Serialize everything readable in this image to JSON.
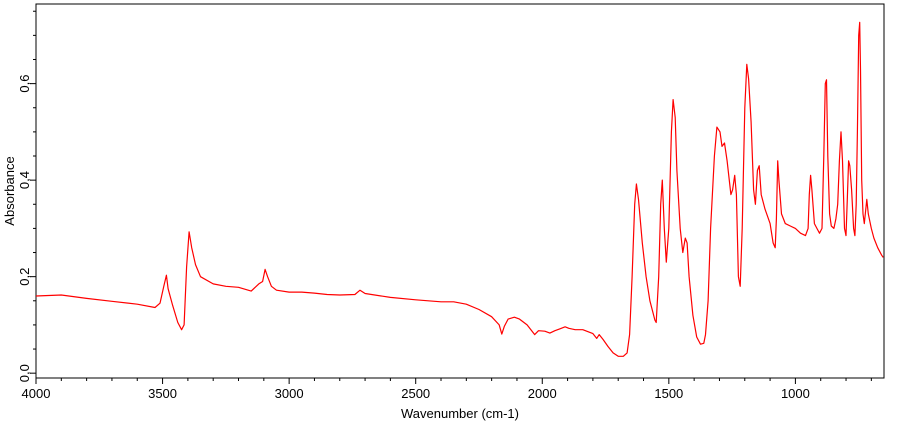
{
  "chart_data": {
    "type": "line",
    "title": "",
    "xlabel": "Wavenumber (cm-1)",
    "ylabel": "Absorbance",
    "xlim": [
      4000,
      650
    ],
    "ylim": [
      -0.01,
      0.765
    ],
    "x_reversed": true,
    "grid": false,
    "legend": "none",
    "line_color": "#ff0000",
    "x_major_ticks": [
      4000,
      3500,
      3000,
      2500,
      2000,
      1500,
      1000
    ],
    "x_tick_labels": [
      "4000",
      "3500",
      "3000",
      "2500",
      "2000",
      "1500",
      "1000"
    ],
    "y_major_ticks": [
      0.0,
      0.2,
      0.4,
      0.6
    ],
    "y_tick_labels": [
      "0,0",
      "0,2",
      "0,4",
      "0,6"
    ],
    "series": [
      {
        "points": [
          [
            4000,
            0.16
          ],
          [
            3900,
            0.162
          ],
          [
            3800,
            0.155
          ],
          [
            3700,
            0.149
          ],
          [
            3600,
            0.143
          ],
          [
            3530,
            0.136
          ],
          [
            3510,
            0.145
          ],
          [
            3495,
            0.18
          ],
          [
            3485,
            0.203
          ],
          [
            3478,
            0.175
          ],
          [
            3460,
            0.14
          ],
          [
            3440,
            0.105
          ],
          [
            3425,
            0.09
          ],
          [
            3415,
            0.1
          ],
          [
            3405,
            0.22
          ],
          [
            3395,
            0.293
          ],
          [
            3385,
            0.26
          ],
          [
            3370,
            0.225
          ],
          [
            3350,
            0.2
          ],
          [
            3300,
            0.185
          ],
          [
            3250,
            0.18
          ],
          [
            3200,
            0.178
          ],
          [
            3150,
            0.17
          ],
          [
            3120,
            0.185
          ],
          [
            3105,
            0.19
          ],
          [
            3095,
            0.215
          ],
          [
            3085,
            0.2
          ],
          [
            3070,
            0.18
          ],
          [
            3050,
            0.172
          ],
          [
            3000,
            0.168
          ],
          [
            2950,
            0.168
          ],
          [
            2900,
            0.166
          ],
          [
            2850,
            0.163
          ],
          [
            2800,
            0.162
          ],
          [
            2740,
            0.163
          ],
          [
            2720,
            0.172
          ],
          [
            2700,
            0.165
          ],
          [
            2600,
            0.157
          ],
          [
            2500,
            0.152
          ],
          [
            2400,
            0.148
          ],
          [
            2350,
            0.148
          ],
          [
            2300,
            0.143
          ],
          [
            2250,
            0.132
          ],
          [
            2200,
            0.117
          ],
          [
            2170,
            0.1
          ],
          [
            2160,
            0.081
          ],
          [
            2150,
            0.097
          ],
          [
            2135,
            0.112
          ],
          [
            2110,
            0.116
          ],
          [
            2090,
            0.112
          ],
          [
            2060,
            0.1
          ],
          [
            2045,
            0.09
          ],
          [
            2030,
            0.08
          ],
          [
            2015,
            0.088
          ],
          [
            1990,
            0.087
          ],
          [
            1970,
            0.083
          ],
          [
            1950,
            0.088
          ],
          [
            1930,
            0.092
          ],
          [
            1910,
            0.096
          ],
          [
            1895,
            0.093
          ],
          [
            1870,
            0.09
          ],
          [
            1840,
            0.09
          ],
          [
            1800,
            0.082
          ],
          [
            1785,
            0.072
          ],
          [
            1775,
            0.08
          ],
          [
            1760,
            0.07
          ],
          [
            1740,
            0.055
          ],
          [
            1720,
            0.042
          ],
          [
            1700,
            0.035
          ],
          [
            1680,
            0.035
          ],
          [
            1665,
            0.042
          ],
          [
            1655,
            0.08
          ],
          [
            1645,
            0.2
          ],
          [
            1635,
            0.35
          ],
          [
            1628,
            0.392
          ],
          [
            1620,
            0.36
          ],
          [
            1605,
            0.27
          ],
          [
            1590,
            0.2
          ],
          [
            1575,
            0.15
          ],
          [
            1555,
            0.11
          ],
          [
            1550,
            0.105
          ],
          [
            1540,
            0.2
          ],
          [
            1532,
            0.35
          ],
          [
            1526,
            0.4
          ],
          [
            1518,
            0.3
          ],
          [
            1510,
            0.23
          ],
          [
            1500,
            0.3
          ],
          [
            1490,
            0.5
          ],
          [
            1483,
            0.567
          ],
          [
            1475,
            0.53
          ],
          [
            1468,
            0.42
          ],
          [
            1455,
            0.3
          ],
          [
            1445,
            0.25
          ],
          [
            1435,
            0.28
          ],
          [
            1428,
            0.27
          ],
          [
            1420,
            0.2
          ],
          [
            1405,
            0.12
          ],
          [
            1390,
            0.075
          ],
          [
            1375,
            0.06
          ],
          [
            1362,
            0.062
          ],
          [
            1355,
            0.08
          ],
          [
            1345,
            0.15
          ],
          [
            1335,
            0.3
          ],
          [
            1320,
            0.45
          ],
          [
            1310,
            0.51
          ],
          [
            1298,
            0.5
          ],
          [
            1290,
            0.47
          ],
          [
            1280,
            0.477
          ],
          [
            1270,
            0.44
          ],
          [
            1255,
            0.37
          ],
          [
            1248,
            0.38
          ],
          [
            1240,
            0.41
          ],
          [
            1233,
            0.37
          ],
          [
            1225,
            0.2
          ],
          [
            1218,
            0.18
          ],
          [
            1210,
            0.3
          ],
          [
            1200,
            0.55
          ],
          [
            1192,
            0.64
          ],
          [
            1185,
            0.61
          ],
          [
            1175,
            0.52
          ],
          [
            1165,
            0.38
          ],
          [
            1158,
            0.35
          ],
          [
            1150,
            0.42
          ],
          [
            1143,
            0.43
          ],
          [
            1135,
            0.37
          ],
          [
            1120,
            0.34
          ],
          [
            1100,
            0.31
          ],
          [
            1088,
            0.27
          ],
          [
            1080,
            0.26
          ],
          [
            1075,
            0.32
          ],
          [
            1070,
            0.44
          ],
          [
            1065,
            0.4
          ],
          [
            1055,
            0.33
          ],
          [
            1040,
            0.31
          ],
          [
            1020,
            0.305
          ],
          [
            1000,
            0.3
          ],
          [
            980,
            0.29
          ],
          [
            960,
            0.285
          ],
          [
            950,
            0.3
          ],
          [
            945,
            0.37
          ],
          [
            940,
            0.41
          ],
          [
            935,
            0.38
          ],
          [
            925,
            0.31
          ],
          [
            915,
            0.3
          ],
          [
            905,
            0.29
          ],
          [
            895,
            0.3
          ],
          [
            888,
            0.45
          ],
          [
            882,
            0.6
          ],
          [
            877,
            0.608
          ],
          [
            872,
            0.45
          ],
          [
            865,
            0.33
          ],
          [
            858,
            0.305
          ],
          [
            848,
            0.3
          ],
          [
            840,
            0.32
          ],
          [
            833,
            0.35
          ],
          [
            826,
            0.44
          ],
          [
            820,
            0.5
          ],
          [
            814,
            0.44
          ],
          [
            806,
            0.3
          ],
          [
            800,
            0.285
          ],
          [
            795,
            0.36
          ],
          [
            790,
            0.44
          ],
          [
            785,
            0.43
          ],
          [
            778,
            0.38
          ],
          [
            770,
            0.3
          ],
          [
            765,
            0.285
          ],
          [
            760,
            0.35
          ],
          [
            755,
            0.5
          ],
          [
            750,
            0.7
          ],
          [
            746,
            0.727
          ],
          [
            743,
            0.63
          ],
          [
            738,
            0.4
          ],
          [
            733,
            0.33
          ],
          [
            728,
            0.31
          ],
          [
            722,
            0.34
          ],
          [
            718,
            0.36
          ],
          [
            712,
            0.33
          ],
          [
            700,
            0.3
          ],
          [
            690,
            0.28
          ],
          [
            675,
            0.26
          ],
          [
            660,
            0.245
          ],
          [
            653,
            0.24
          ]
        ]
      }
    ]
  }
}
